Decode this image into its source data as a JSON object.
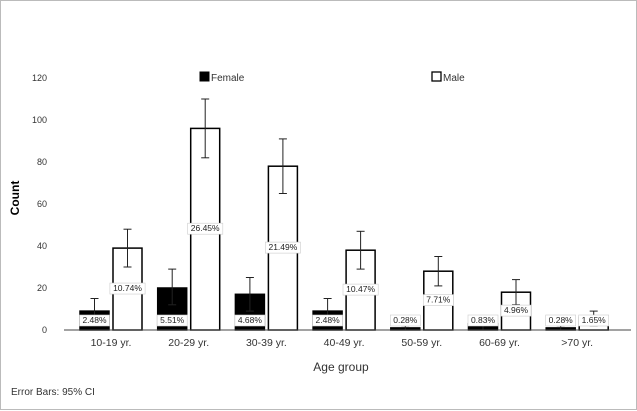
{
  "chart_data": {
    "type": "bar",
    "title": "",
    "xlabel": "Age group",
    "ylabel": "Count",
    "ylim": [
      0,
      130
    ],
    "yticks": [
      0,
      20,
      40,
      60,
      80,
      100,
      120
    ],
    "grid": false,
    "legend_placement": "top",
    "categories": [
      "10-19 yr.",
      "20-29 yr.",
      "30-39 yr.",
      "40-49 yr.",
      "50-59 yr.",
      "60-69 yr.",
      ">70 yr."
    ],
    "series": [
      {
        "name": "Female",
        "color": "#000000",
        "values": [
          9,
          20,
          17,
          9,
          1,
          3,
          1
        ],
        "labels": [
          "2.48%",
          "5.51%",
          "4.68%",
          "2.48%",
          "0.28%",
          "0.83%",
          "0.28%"
        ],
        "ci_low": [
          3,
          12,
          9,
          3,
          0,
          0,
          0
        ],
        "ci_high": [
          15,
          29,
          25,
          15,
          2,
          6,
          2
        ]
      },
      {
        "name": "Male",
        "color": "#ffffff",
        "values": [
          39,
          96,
          78,
          38,
          28,
          18,
          6
        ],
        "labels": [
          "10.74%",
          "26.45%",
          "21.49%",
          "10.47%",
          "7.71%",
          "4.96%",
          "1.65%"
        ],
        "ci_low": [
          30,
          82,
          65,
          29,
          21,
          12,
          2
        ],
        "ci_high": [
          48,
          110,
          91,
          47,
          35,
          24,
          9
        ]
      }
    ],
    "footnote": "Error Bars: 95% CI"
  }
}
